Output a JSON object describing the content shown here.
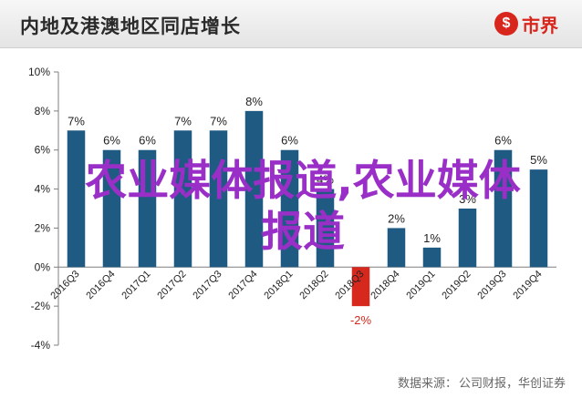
{
  "header": {
    "title": "内地及港澳地区同店增长",
    "brand": "市界"
  },
  "watermark": "农业媒体报道,农业媒体报道",
  "source": {
    "label": "数据来源：",
    "text": "公司财报，华创证券"
  },
  "chart_data": {
    "type": "bar",
    "title": "内地及港澳地区同店增长",
    "categories": [
      "2016Q3",
      "2016Q4",
      "2017Q1",
      "2017Q2",
      "2017Q3",
      "2017Q4",
      "2018Q1",
      "2018Q2",
      "2018Q3",
      "2018Q4",
      "2019Q1",
      "2019Q2",
      "2019Q3",
      "2019Q4"
    ],
    "values": [
      7,
      6,
      6,
      7,
      7,
      8,
      6,
      4,
      -2,
      2,
      1,
      3,
      6,
      5
    ],
    "data_labels": [
      "7%",
      "6%",
      "6%",
      "7%",
      "7%",
      "8%",
      "6%",
      "4%",
      "-2%",
      "2%",
      "1%",
      "3%",
      "6%",
      "5%"
    ],
    "ylim": [
      -4,
      10
    ],
    "yticks": [
      -4,
      -2,
      0,
      2,
      4,
      6,
      8,
      10
    ],
    "ytick_labels": [
      "-4%",
      "-2%",
      "0%",
      "2%",
      "4%",
      "6%",
      "8%",
      "10%"
    ],
    "colors": {
      "positive": "#1f5a82",
      "negative": "#d7281d",
      "axis": "#7f7f7f",
      "label": "#222222"
    },
    "grid": false,
    "legend": "none"
  }
}
